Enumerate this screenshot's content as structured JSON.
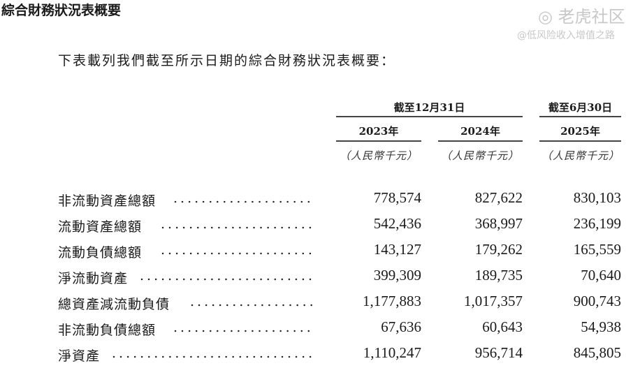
{
  "title": "綜合財務狀況表概要",
  "intro": "下表載列我們截至所示日期的綜合財務狀況表概要：",
  "header": {
    "group1": "截至12月31日",
    "group2": "截至6月30日",
    "years": [
      "2023年",
      "2024年",
      "2025年"
    ],
    "unit": "（人民幣千元）"
  },
  "rows": [
    {
      "label": "非流動資產總額",
      "values": [
        "778,574",
        "827,622",
        "830,103"
      ]
    },
    {
      "label": "流動資產總額",
      "values": [
        "542,436",
        "368,997",
        "236,199"
      ]
    },
    {
      "label": "流動負債總額",
      "values": [
        "143,127",
        "179,262",
        "165,559"
      ]
    },
    {
      "label": "淨流動資產",
      "values": [
        "399,309",
        "189,735",
        "70,640"
      ]
    },
    {
      "label": "總資產減流動負債",
      "values": [
        "1,177,883",
        "1,017,357",
        "900,743"
      ]
    },
    {
      "label": "非流動負債總額",
      "values": [
        "67,636",
        "60,643",
        "54,938"
      ]
    },
    {
      "label": "淨資產",
      "values": [
        "1,110,247",
        "956,714",
        "845,805"
      ]
    }
  ],
  "watermark": {
    "brand": "老虎社区",
    "handle": "@低风险收入增值之路"
  }
}
